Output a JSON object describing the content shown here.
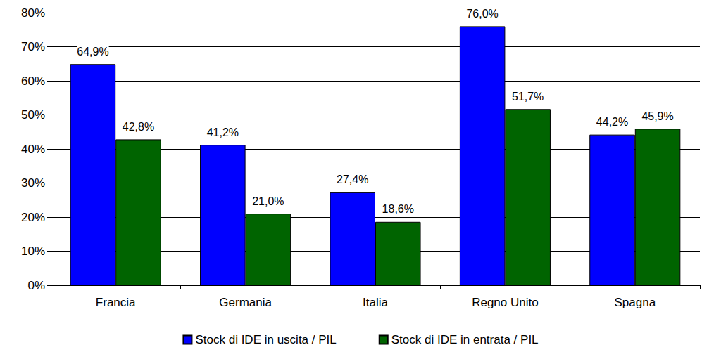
{
  "chart_data": {
    "type": "bar",
    "categories": [
      "Francia",
      "Germania",
      "Italia",
      "Regno Unito",
      "Spagna"
    ],
    "series": [
      {
        "name": "Stock di IDE in uscita / PIL",
        "color": "#0000ff",
        "values": [
          64.9,
          41.2,
          27.4,
          76.0,
          44.2
        ],
        "value_labels": [
          "64,9%",
          "41,2%",
          "27,4%",
          "76,0%",
          "44,2%"
        ]
      },
      {
        "name": "Stock di IDE in entrata / PIL",
        "color": "#006400",
        "values": [
          42.8,
          21.0,
          18.6,
          51.7,
          45.9
        ],
        "value_labels": [
          "42,8%",
          "21,0%",
          "18,6%",
          "51,7%",
          "45,9%"
        ]
      }
    ],
    "ylim": [
      0,
      80
    ],
    "yticks": [
      {
        "value": 0,
        "label": "0%"
      },
      {
        "value": 10,
        "label": "10%"
      },
      {
        "value": 20,
        "label": "20%"
      },
      {
        "value": 30,
        "label": "30%"
      },
      {
        "value": 40,
        "label": "40%"
      },
      {
        "value": 50,
        "label": "50%"
      },
      {
        "value": 60,
        "label": "60%"
      },
      {
        "value": 70,
        "label": "70%"
      },
      {
        "value": 80,
        "label": "80%"
      }
    ],
    "grid": true,
    "legend": "bottom",
    "data_labels": true
  }
}
